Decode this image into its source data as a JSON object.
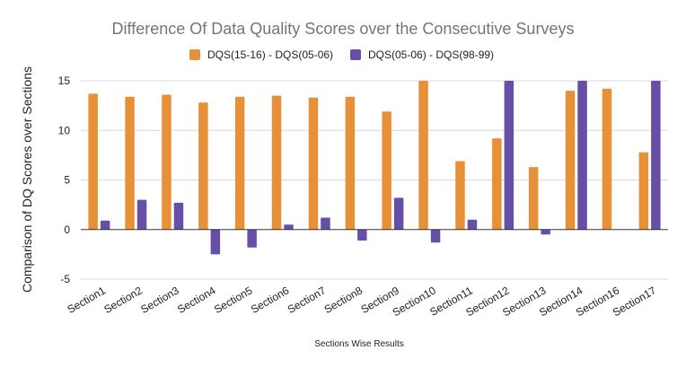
{
  "chart_data": {
    "type": "bar",
    "title": "Difference Of Data Quality Scores over the Consecutive Surveys",
    "xlabel": "Sections Wise Results",
    "ylabel": "Comparison of DQ Scores over Sections",
    "ylim": [
      -5,
      15
    ],
    "yticks": [
      "-5",
      "0",
      "5",
      "10",
      "15"
    ],
    "grid": true,
    "legend_position": "top",
    "categories": [
      "Section1",
      "Section2",
      "Section3",
      "Section4",
      "Section5",
      "Section6",
      "Section7",
      "Section8",
      "Section9",
      "Section10",
      "Section11",
      "Section12",
      "Section13",
      "Section14",
      "Section16",
      "Section17"
    ],
    "series": [
      {
        "name": "DQS(15-16) - DQS(05-06)",
        "color": "#e69138",
        "values": [
          13.7,
          13.4,
          13.6,
          12.8,
          13.4,
          13.5,
          13.3,
          13.4,
          11.9,
          15.0,
          6.9,
          9.2,
          6.3,
          14.0,
          14.2,
          7.8
        ]
      },
      {
        "name": "DQS(05-06) - DQS(98-99)",
        "color": "#674ea7",
        "values": [
          0.9,
          3.0,
          2.7,
          -2.5,
          -1.8,
          0.5,
          1.2,
          -1.1,
          3.2,
          -1.3,
          1.0,
          15.0,
          -0.5,
          15.0,
          0,
          15.0
        ]
      }
    ]
  }
}
